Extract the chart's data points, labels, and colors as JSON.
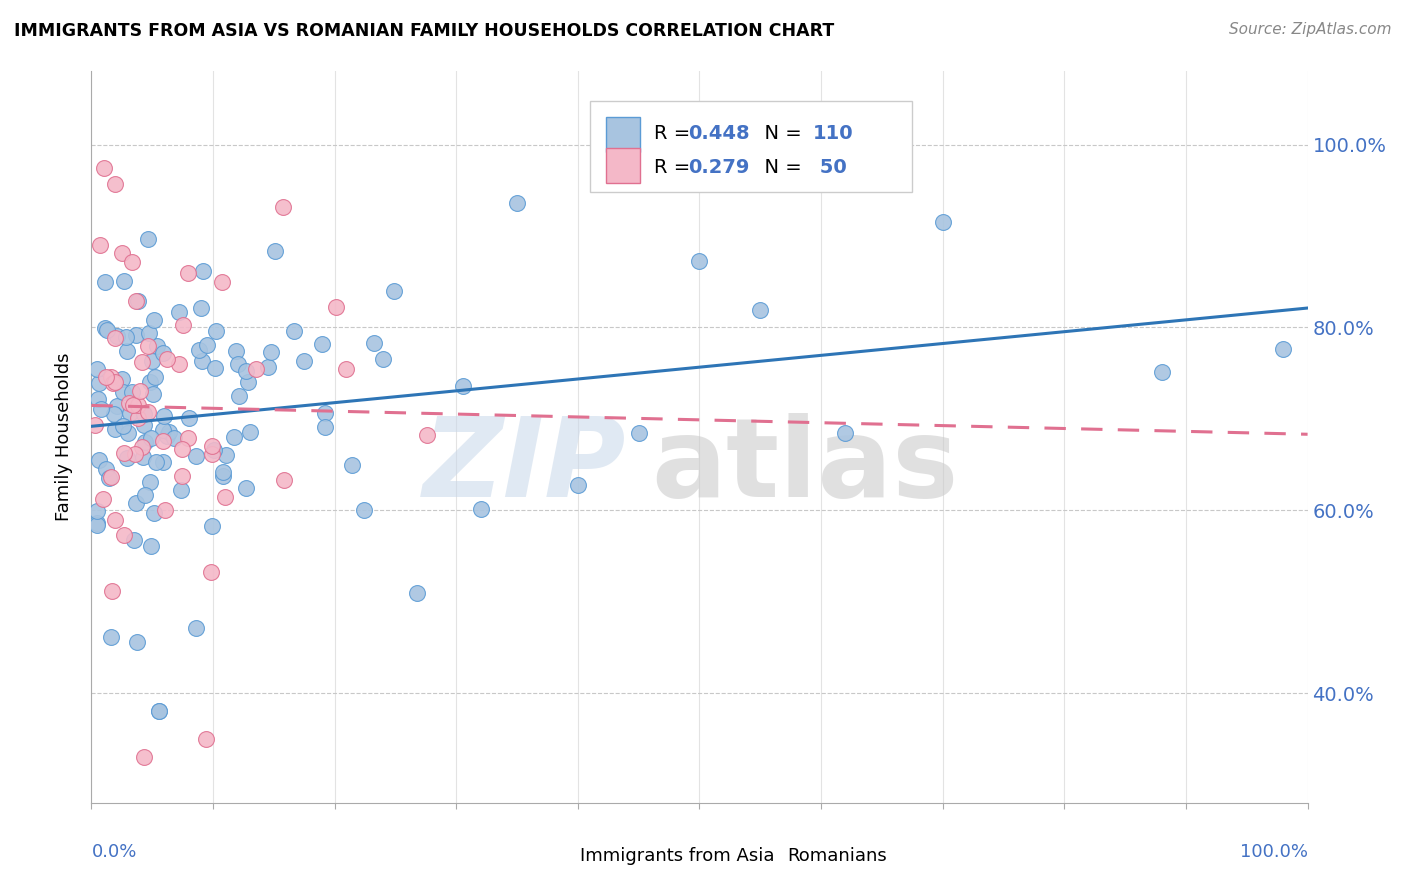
{
  "title": "IMMIGRANTS FROM ASIA VS ROMANIAN FAMILY HOUSEHOLDS CORRELATION CHART",
  "source": "Source: ZipAtlas.com",
  "ylabel": "Family Households",
  "legend_asia": "Immigrants from Asia",
  "legend_romanians": "Romanians",
  "r_asia": 0.448,
  "n_asia": 110,
  "r_romanians": 0.279,
  "n_romanians": 50,
  "color_asia_fill": "#a8c4e0",
  "color_asia_edge": "#5b9bd5",
  "color_asia_line": "#2e75b6",
  "color_romanian_fill": "#f4b8c8",
  "color_romanian_edge": "#e07090",
  "color_romanian_line": "#e07090",
  "color_label_blue": "#4472c4",
  "color_grid": "#c8c8c8",
  "xlim": [
    0.0,
    1.0
  ],
  "ylim": [
    0.28,
    1.08
  ],
  "yticks": [
    0.4,
    0.6,
    0.8,
    1.0
  ],
  "ytick_labels": [
    "40.0%",
    "60.0%",
    "80.0%",
    "100.0%"
  ]
}
